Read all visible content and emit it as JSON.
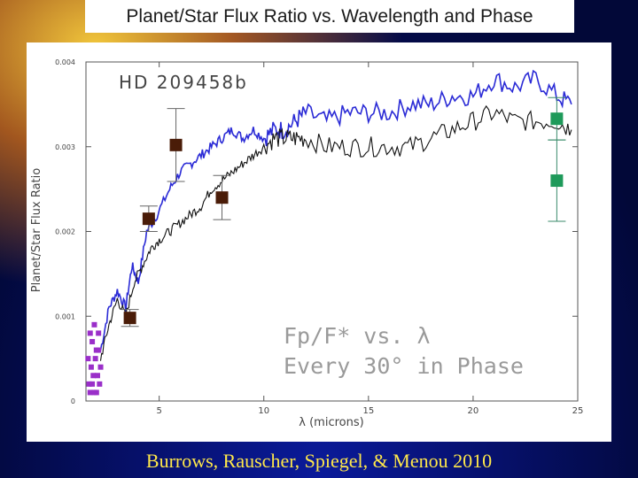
{
  "slide": {
    "title": "Planet/Star Flux Ratio vs. Wavelength and Phase",
    "credit": "Burrows, Rauscher, Spiegel, & Menou  2010"
  },
  "chart_data": {
    "type": "line",
    "plot_label": "HD 209458b",
    "annotation_line1": "Fp/F* vs. λ",
    "annotation_line2": "Every 30° in Phase",
    "xlabel": "λ (microns)",
    "ylabel": "Planet/Star Flux Ratio",
    "xlim": [
      1.5,
      25
    ],
    "ylim": [
      0,
      0.004
    ],
    "x_ticks": [
      5,
      10,
      15,
      20,
      25
    ],
    "x_tick_labels": [
      "5",
      "10",
      "15",
      "20",
      "25"
    ],
    "y_ticks": [
      0,
      0.001,
      0.002,
      0.003,
      0.004
    ],
    "y_tick_labels": [
      "0",
      "0.001",
      "0.002",
      "0.003",
      "0.004"
    ],
    "colors": {
      "blue_series": "#2b2bd6",
      "black_series": "#111111",
      "brown_points": "#4a1c08",
      "green_points": "#1e9a5a",
      "purple_points": "#9a2fc9"
    },
    "series": [
      {
        "name": "model-phase-blue",
        "color": "#2b2bd6",
        "x": [
          2.2,
          2.6,
          3.0,
          3.4,
          3.7,
          4.0,
          4.4,
          4.9,
          5.5,
          6.0,
          6.5,
          7.0,
          7.5,
          8.0,
          8.5,
          9.0,
          9.5,
          10.0,
          10.5,
          11.0,
          11.5,
          12.0,
          13.0,
          14.0,
          15.0,
          16.0,
          17.0,
          18.0,
          19.0,
          20.0,
          21.0,
          22.0,
          23.0,
          24.0,
          24.7
        ],
        "y": [
          0.0006,
          0.0011,
          0.0013,
          0.0011,
          0.0016,
          0.0014,
          0.002,
          0.0022,
          0.0025,
          0.0027,
          0.0028,
          0.0029,
          0.003,
          0.0031,
          0.0032,
          0.0031,
          0.0032,
          0.0031,
          0.0032,
          0.0032,
          0.0033,
          0.0034,
          0.0033,
          0.0034,
          0.0034,
          0.0034,
          0.0035,
          0.0035,
          0.0036,
          0.0036,
          0.0038,
          0.0037,
          0.0038,
          0.0036,
          0.0035
        ]
      },
      {
        "name": "model-phase-black",
        "color": "#111111",
        "x": [
          2.2,
          2.6,
          3.0,
          3.4,
          3.8,
          4.2,
          4.6,
          5.0,
          5.5,
          6.0,
          6.5,
          7.0,
          7.5,
          8.0,
          8.5,
          9.0,
          9.5,
          10.0,
          10.5,
          11.0,
          11.5,
          12.0,
          13.0,
          14.0,
          15.0,
          16.0,
          17.0,
          18.0,
          19.0,
          20.0,
          21.0,
          22.0,
          23.0,
          24.0,
          24.7
        ],
        "y": [
          0.0005,
          0.0009,
          0.0012,
          0.001,
          0.0014,
          0.0016,
          0.0018,
          0.0019,
          0.002,
          0.0021,
          0.0022,
          0.0023,
          0.0025,
          0.0026,
          0.0027,
          0.0028,
          0.0029,
          0.003,
          0.0031,
          0.0031,
          0.0031,
          0.0031,
          0.003,
          0.003,
          0.003,
          0.003,
          0.003,
          0.0031,
          0.0032,
          0.0033,
          0.0034,
          0.0033,
          0.0033,
          0.0033,
          0.0032
        ]
      }
    ],
    "data_points": [
      {
        "set": "brown",
        "x": 3.6,
        "y": 0.00098,
        "err": 0.0001
      },
      {
        "set": "brown",
        "x": 4.5,
        "y": 0.00215,
        "err": 0.00015
      },
      {
        "set": "brown",
        "x": 5.8,
        "y": 0.00302,
        "err": 0.00043
      },
      {
        "set": "brown",
        "x": 8.0,
        "y": 0.0024,
        "err": 0.00026
      },
      {
        "set": "green",
        "x": 24.0,
        "y": 0.00333,
        "err": 0.00025
      },
      {
        "set": "green",
        "x": 24.0,
        "y": 0.0026,
        "err": 0.00048
      }
    ],
    "purple_points": [
      {
        "x": 1.7,
        "y": 0.0008
      },
      {
        "x": 1.8,
        "y": 0.0007
      },
      {
        "x": 1.9,
        "y": 0.0009
      },
      {
        "x": 2.0,
        "y": 0.0006
      },
      {
        "x": 2.1,
        "y": 0.0008
      },
      {
        "x": 1.6,
        "y": 0.0005
      },
      {
        "x": 1.75,
        "y": 0.0004
      },
      {
        "x": 1.95,
        "y": 0.0005
      },
      {
        "x": 2.05,
        "y": 0.0003
      },
      {
        "x": 1.65,
        "y": 0.0002
      },
      {
        "x": 1.85,
        "y": 0.0003
      },
      {
        "x": 2.15,
        "y": 0.0002
      },
      {
        "x": 1.7,
        "y": 0.0001
      },
      {
        "x": 1.9,
        "y": 0.0001
      },
      {
        "x": 2.0,
        "y": 0.0001
      },
      {
        "x": 2.2,
        "y": 0.0004
      },
      {
        "x": 1.8,
        "y": 0.0002
      },
      {
        "x": 2.1,
        "y": 0.0006
      }
    ]
  }
}
